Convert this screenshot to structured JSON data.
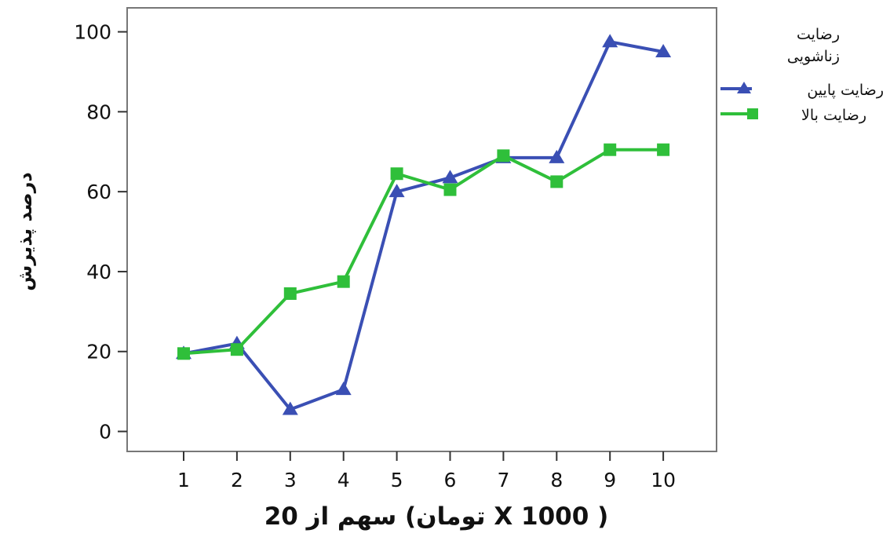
{
  "chart_data": {
    "type": "line",
    "x": [
      1,
      2,
      3,
      4,
      5,
      6,
      7,
      8,
      9,
      10
    ],
    "xticks": [
      "1",
      "2",
      "3",
      "4",
      "5",
      "6",
      "7",
      "8",
      "9",
      "10"
    ],
    "yticks": [
      "0",
      "20",
      "40",
      "60",
      "80",
      "100"
    ],
    "ylim": [
      -5,
      106
    ],
    "xlabel": "سهم از 20 (تومان X 1000 )",
    "ylabel": "درصد پذیرش",
    "legend": {
      "title_line1": "رضایت",
      "title_line2": "زناشویی",
      "placement": "right"
    },
    "series": [
      {
        "name": "رضایت پایین",
        "color": "#3a4fb4",
        "marker": "triangle",
        "values": [
          19.5,
          22,
          5.5,
          10.5,
          60,
          63.5,
          68.5,
          68.5,
          97.5,
          95
        ]
      },
      {
        "name": "رضایت بالا",
        "color": "#2fbf3a",
        "marker": "square",
        "values": [
          19.5,
          20.5,
          34.5,
          37.5,
          64.5,
          60.5,
          69,
          62.5,
          70.5,
          70.5
        ]
      }
    ],
    "grid": false
  }
}
